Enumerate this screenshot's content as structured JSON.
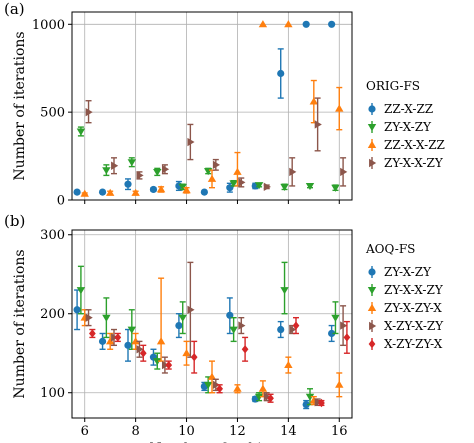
{
  "figure": {
    "xlabel": "Number of qubits",
    "ylabel": "Number of iterations"
  },
  "chart_data": [
    {
      "type": "scatter",
      "panel_label": "(a)",
      "legend_title": "ORIG-FS",
      "legend_placement": "right",
      "xlabel": "",
      "ylabel": "Number of iterations",
      "xlim": [
        5.5,
        16.5
      ],
      "ylim": [
        0,
        1070
      ],
      "xticks": [
        6,
        8,
        10,
        12,
        14,
        16
      ],
      "yticks": [
        0,
        500,
        1000
      ],
      "grid": true,
      "error_bars": true,
      "series": [
        {
          "name": "ZZ-X-ZZ",
          "color": "#1f77b4",
          "marker": "circle",
          "points": [
            {
              "x": 6,
              "y": 45,
              "lo": 40,
              "hi": 50
            },
            {
              "x": 7,
              "y": 45,
              "lo": 40,
              "hi": 50
            },
            {
              "x": 8,
              "y": 90,
              "lo": 60,
              "hi": 120
            },
            {
              "x": 9,
              "y": 60,
              "lo": 50,
              "hi": 70
            },
            {
              "x": 10,
              "y": 80,
              "lo": 55,
              "hi": 105
            },
            {
              "x": 11,
              "y": 45,
              "lo": 40,
              "hi": 50
            },
            {
              "x": 12,
              "y": 70,
              "lo": 45,
              "hi": 95
            },
            {
              "x": 13,
              "y": 80,
              "lo": 65,
              "hi": 95
            },
            {
              "x": 14,
              "y": 720,
              "lo": 580,
              "hi": 860
            },
            {
              "x": 15,
              "y": 1000,
              "lo": 1000,
              "hi": 1000
            },
            {
              "x": 16,
              "y": 1000,
              "lo": 1000,
              "hi": 1000
            }
          ]
        },
        {
          "name": "ZY-X-ZY",
          "color": "#2ca02c",
          "marker": "triangle-down",
          "points": [
            {
              "x": 6,
              "y": 390,
              "lo": 365,
              "hi": 415
            },
            {
              "x": 7,
              "y": 170,
              "lo": 140,
              "hi": 200
            },
            {
              "x": 8,
              "y": 215,
              "lo": 190,
              "hi": 240
            },
            {
              "x": 9,
              "y": 160,
              "lo": 140,
              "hi": 180
            },
            {
              "x": 10,
              "y": 75,
              "lo": 60,
              "hi": 90
            },
            {
              "x": 11,
              "y": 165,
              "lo": 150,
              "hi": 180
            },
            {
              "x": 12,
              "y": 95,
              "lo": 80,
              "hi": 110
            },
            {
              "x": 13,
              "y": 85,
              "lo": 75,
              "hi": 95
            },
            {
              "x": 14,
              "y": 75,
              "lo": 60,
              "hi": 90
            },
            {
              "x": 15,
              "y": 80,
              "lo": 70,
              "hi": 90
            },
            {
              "x": 16,
              "y": 70,
              "lo": 55,
              "hi": 85
            }
          ]
        },
        {
          "name": "ZZ-X-X-ZZ",
          "color": "#ff7f0e",
          "marker": "triangle-up",
          "points": [
            {
              "x": 6,
              "y": 35,
              "lo": 30,
              "hi": 40
            },
            {
              "x": 7,
              "y": 40,
              "lo": 30,
              "hi": 50
            },
            {
              "x": 8,
              "y": 40,
              "lo": 30,
              "hi": 50
            },
            {
              "x": 9,
              "y": 60,
              "lo": 45,
              "hi": 75
            },
            {
              "x": 10,
              "y": 55,
              "lo": 40,
              "hi": 70
            },
            {
              "x": 11,
              "y": 120,
              "lo": 70,
              "hi": 170
            },
            {
              "x": 12,
              "y": 160,
              "lo": 80,
              "hi": 270
            },
            {
              "x": 13,
              "y": 1000,
              "lo": 1000,
              "hi": 1000
            },
            {
              "x": 14,
              "y": 1000,
              "lo": 1000,
              "hi": 1000
            },
            {
              "x": 15,
              "y": 560,
              "lo": 440,
              "hi": 680
            },
            {
              "x": 16,
              "y": 520,
              "lo": 400,
              "hi": 640
            }
          ]
        },
        {
          "name": "ZY-X-X-ZY",
          "color": "#8c564b",
          "marker": "triangle-right",
          "points": [
            {
              "x": 6,
              "y": 500,
              "lo": 440,
              "hi": 565
            },
            {
              "x": 7,
              "y": 195,
              "lo": 150,
              "hi": 240
            },
            {
              "x": 8,
              "y": 140,
              "lo": 120,
              "hi": 160
            },
            {
              "x": 9,
              "y": 175,
              "lo": 150,
              "hi": 200
            },
            {
              "x": 10,
              "y": 330,
              "lo": 230,
              "hi": 430
            },
            {
              "x": 11,
              "y": 200,
              "lo": 170,
              "hi": 230
            },
            {
              "x": 12,
              "y": 100,
              "lo": 75,
              "hi": 125
            },
            {
              "x": 13,
              "y": 75,
              "lo": 65,
              "hi": 85
            },
            {
              "x": 14,
              "y": 160,
              "lo": 80,
              "hi": 240
            },
            {
              "x": 15,
              "y": 430,
              "lo": 280,
              "hi": 580
            },
            {
              "x": 16,
              "y": 160,
              "lo": 80,
              "hi": 240
            }
          ]
        }
      ]
    },
    {
      "type": "scatter",
      "panel_label": "(b)",
      "legend_title": "AOQ-FS",
      "legend_placement": "right",
      "xlabel": "Number of qubits",
      "ylabel": "Number of iterations",
      "xlim": [
        5.5,
        16.5
      ],
      "ylim": [
        68,
        306
      ],
      "xticks": [
        6,
        8,
        10,
        12,
        14,
        16
      ],
      "yticks": [
        100,
        200,
        300
      ],
      "grid": true,
      "error_bars": true,
      "series": [
        {
          "name": "ZY-X-ZY",
          "color": "#1f77b4",
          "marker": "circle",
          "points": [
            {
              "x": 6,
              "y": 205,
              "lo": 180,
              "hi": 230
            },
            {
              "x": 7,
              "y": 165,
              "lo": 155,
              "hi": 175
            },
            {
              "x": 8,
              "y": 160,
              "lo": 140,
              "hi": 180
            },
            {
              "x": 9,
              "y": 145,
              "lo": 135,
              "hi": 155
            },
            {
              "x": 10,
              "y": 185,
              "lo": 170,
              "hi": 200
            },
            {
              "x": 11,
              "y": 108,
              "lo": 103,
              "hi": 113
            },
            {
              "x": 12,
              "y": 198,
              "lo": 175,
              "hi": 220
            },
            {
              "x": 13,
              "y": 92,
              "lo": 89,
              "hi": 95
            },
            {
              "x": 14,
              "y": 180,
              "lo": 170,
              "hi": 190
            },
            {
              "x": 15,
              "y": 85,
              "lo": 80,
              "hi": 90
            },
            {
              "x": 16,
              "y": 175,
              "lo": 165,
              "hi": 185
            }
          ]
        },
        {
          "name": "ZY-X-X-ZY",
          "color": "#2ca02c",
          "marker": "triangle-down",
          "points": [
            {
              "x": 6,
              "y": 230,
              "lo": 200,
              "hi": 260
            },
            {
              "x": 7,
              "y": 195,
              "lo": 170,
              "hi": 220
            },
            {
              "x": 8,
              "y": 180,
              "lo": 155,
              "hi": 205
            },
            {
              "x": 9,
              "y": 140,
              "lo": 130,
              "hi": 150
            },
            {
              "x": 10,
              "y": 195,
              "lo": 175,
              "hi": 215
            },
            {
              "x": 11,
              "y": 110,
              "lo": 100,
              "hi": 120
            },
            {
              "x": 12,
              "y": 180,
              "lo": 165,
              "hi": 195
            },
            {
              "x": 13,
              "y": 95,
              "lo": 90,
              "hi": 100
            },
            {
              "x": 14,
              "y": 230,
              "lo": 200,
              "hi": 265
            },
            {
              "x": 15,
              "y": 95,
              "lo": 85,
              "hi": 105
            },
            {
              "x": 16,
              "y": 195,
              "lo": 175,
              "hi": 215
            }
          ]
        },
        {
          "name": "ZY-X-ZY-X",
          "color": "#ff7f0e",
          "marker": "triangle-up",
          "points": [
            {
              "x": 6,
              "y": 195,
              "lo": 185,
              "hi": 205
            },
            {
              "x": 7,
              "y": 165,
              "lo": 155,
              "hi": 175
            },
            {
              "x": 8,
              "y": 165,
              "lo": 155,
              "hi": 175
            },
            {
              "x": 9,
              "y": 165,
              "lo": 140,
              "hi": 245
            },
            {
              "x": 10,
              "y": 150,
              "lo": 135,
              "hi": 165
            },
            {
              "x": 11,
              "y": 120,
              "lo": 100,
              "hi": 140
            },
            {
              "x": 12,
              "y": 105,
              "lo": 100,
              "hi": 110
            },
            {
              "x": 13,
              "y": 105,
              "lo": 95,
              "hi": 115
            },
            {
              "x": 14,
              "y": 135,
              "lo": 125,
              "hi": 145
            },
            {
              "x": 15,
              "y": 90,
              "lo": 85,
              "hi": 95
            },
            {
              "x": 16,
              "y": 110,
              "lo": 95,
              "hi": 125
            }
          ]
        },
        {
          "name": "X-ZY-X-ZY",
          "color": "#8c564b",
          "marker": "triangle-right",
          "points": [
            {
              "x": 6,
              "y": 195,
              "lo": 185,
              "hi": 205
            },
            {
              "x": 7,
              "y": 170,
              "lo": 160,
              "hi": 180
            },
            {
              "x": 8,
              "y": 155,
              "lo": 145,
              "hi": 165
            },
            {
              "x": 9,
              "y": 135,
              "lo": 125,
              "hi": 145
            },
            {
              "x": 10,
              "y": 205,
              "lo": 145,
              "hi": 265
            },
            {
              "x": 11,
              "y": 110,
              "lo": 103,
              "hi": 117
            },
            {
              "x": 12,
              "y": 185,
              "lo": 175,
              "hi": 195
            },
            {
              "x": 13,
              "y": 95,
              "lo": 90,
              "hi": 100
            },
            {
              "x": 14,
              "y": 180,
              "lo": 175,
              "hi": 185
            },
            {
              "x": 15,
              "y": 88,
              "lo": 84,
              "hi": 92
            },
            {
              "x": 16,
              "y": 185,
              "lo": 160,
              "hi": 210
            }
          ]
        },
        {
          "name": "X-ZY-ZY-X",
          "color": "#d62728",
          "marker": "diamond",
          "points": [
            {
              "x": 6,
              "y": 175,
              "lo": 170,
              "hi": 180
            },
            {
              "x": 7,
              "y": 170,
              "lo": 165,
              "hi": 175
            },
            {
              "x": 8,
              "y": 150,
              "lo": 140,
              "hi": 160
            },
            {
              "x": 9,
              "y": 135,
              "lo": 130,
              "hi": 140
            },
            {
              "x": 10,
              "y": 145,
              "lo": 125,
              "hi": 165
            },
            {
              "x": 11,
              "y": 105,
              "lo": 100,
              "hi": 110
            },
            {
              "x": 12,
              "y": 155,
              "lo": 140,
              "hi": 170
            },
            {
              "x": 13,
              "y": 93,
              "lo": 88,
              "hi": 98
            },
            {
              "x": 14,
              "y": 185,
              "lo": 175,
              "hi": 195
            },
            {
              "x": 15,
              "y": 87,
              "lo": 84,
              "hi": 90
            },
            {
              "x": 16,
              "y": 170,
              "lo": 150,
              "hi": 190
            }
          ]
        }
      ]
    }
  ]
}
